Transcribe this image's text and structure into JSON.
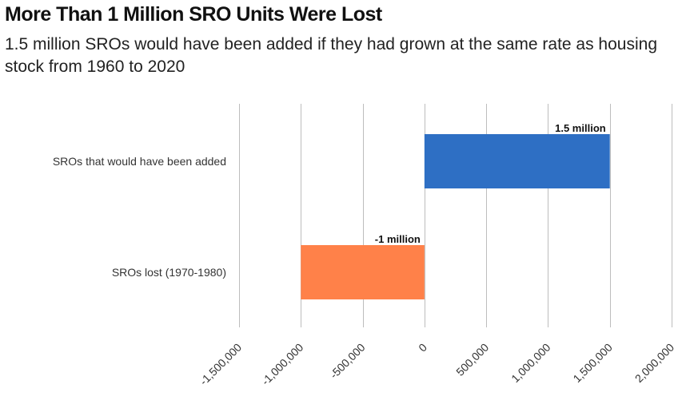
{
  "chart_data": {
    "type": "bar",
    "orientation": "horizontal",
    "title": "More Than 1 Million SRO Units Were Lost",
    "subtitle": "1.5 million SROs would have been added if they had grown at the same rate as housing stock from 1960 to 2020",
    "categories": [
      "SROs that would have been added",
      "SROs lost (1970-1980)"
    ],
    "values": [
      1500000,
      -1000000
    ],
    "data_labels": [
      "1.5 million",
      "-1 million"
    ],
    "colors": [
      "#2E6FC4",
      "#FF8149"
    ],
    "xlim": [
      -1500000,
      2000000
    ],
    "x_ticks": [
      -1500000,
      -1000000,
      -500000,
      0,
      500000,
      1000000,
      1500000,
      2000000
    ],
    "x_tick_labels": [
      "-1,500,000",
      "-1,000,000",
      "-500,000",
      "0",
      "500,000",
      "1,000,000",
      "1,500,000",
      "2,000,000"
    ],
    "grid": true,
    "legend": "none"
  }
}
